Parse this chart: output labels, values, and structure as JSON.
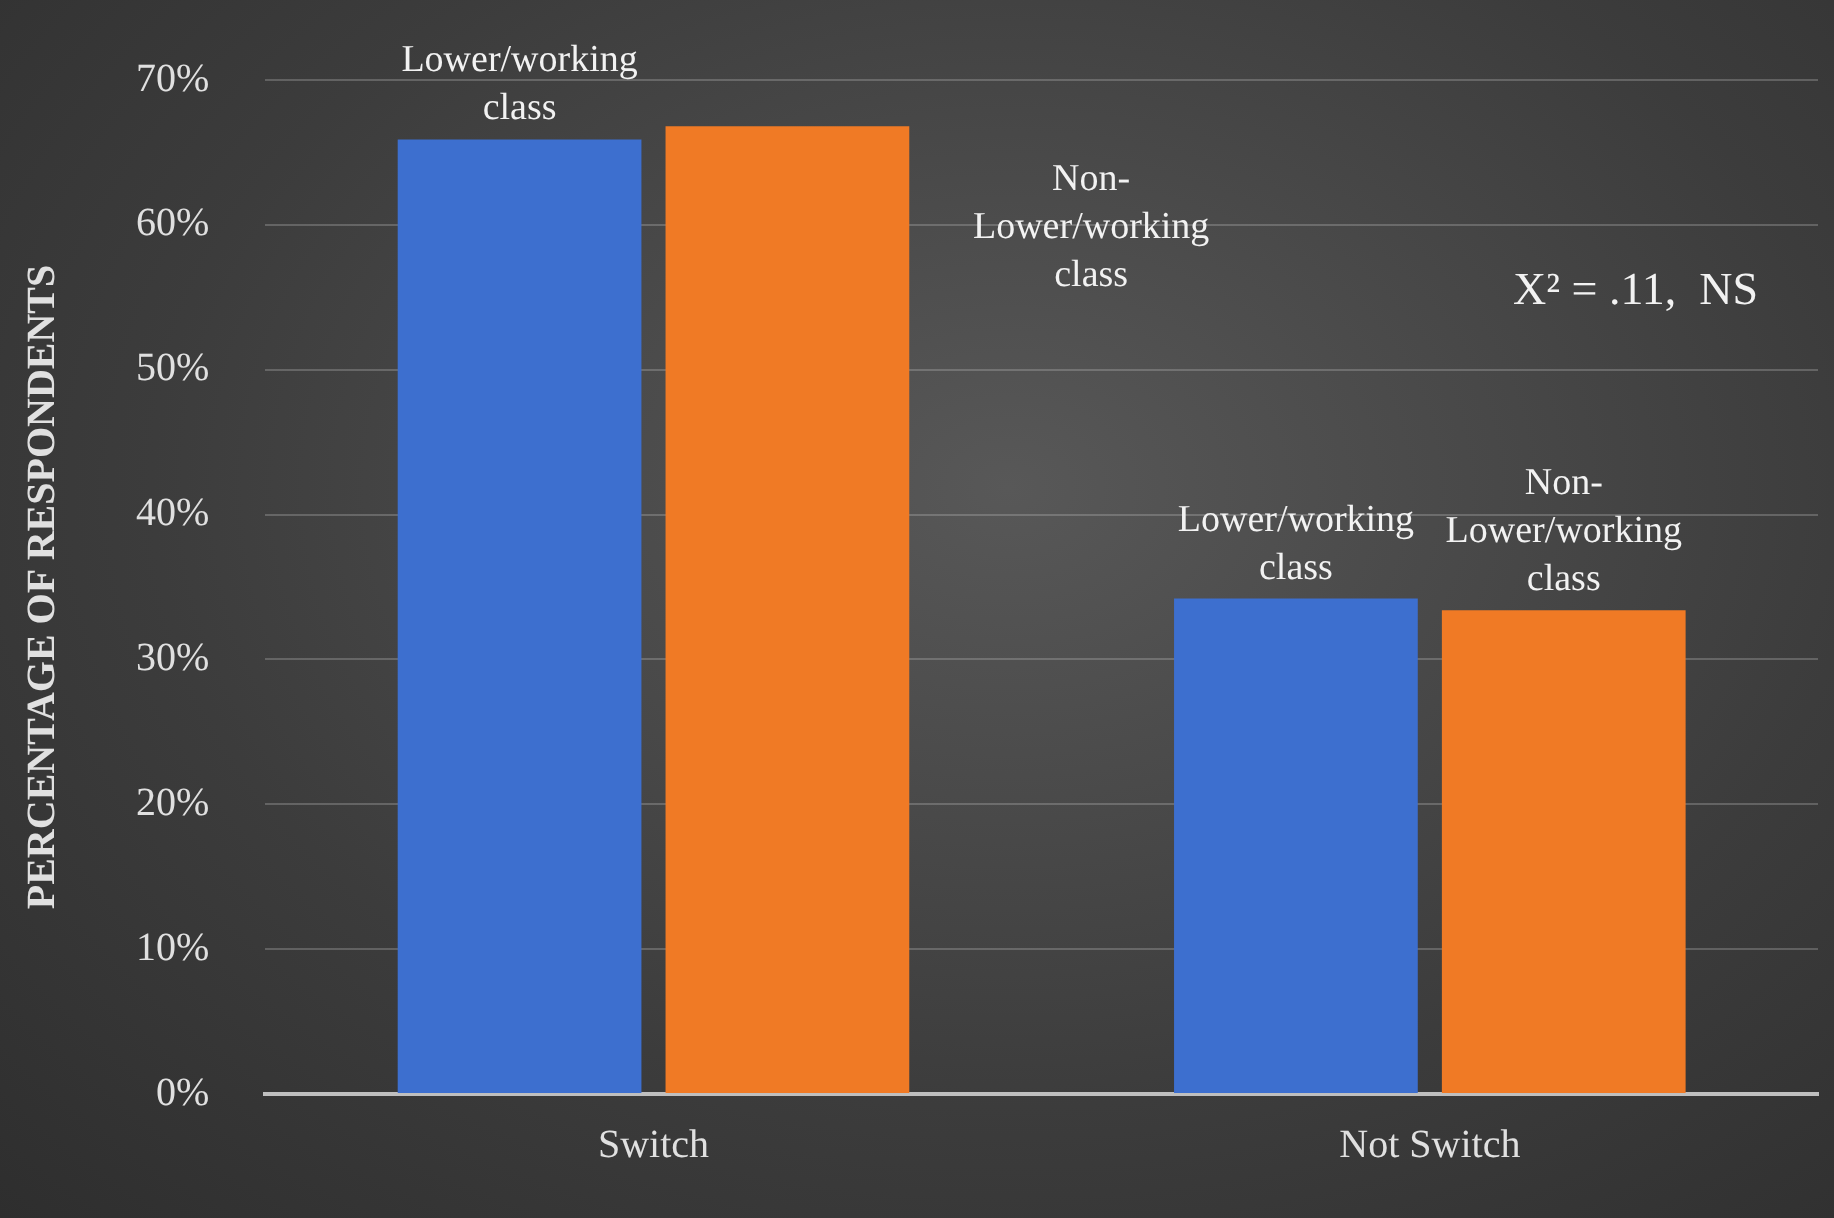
{
  "chart_data": {
    "type": "bar",
    "ylabel": "PERCENTAGE OF RESPONDENTS",
    "categories": [
      "Switch",
      "Not Switch"
    ],
    "series": [
      {
        "name": "Lower/working class",
        "color": "#3d6fcf",
        "values": [
          65.9,
          34.2
        ]
      },
      {
        "name": "Non-Lower/working class",
        "color": "#f07a25",
        "values": [
          66.8,
          33.4
        ]
      }
    ],
    "ylim": [
      0,
      70
    ],
    "yticks": [
      {
        "value": 0,
        "label": "0%"
      },
      {
        "value": 10,
        "label": "10%"
      },
      {
        "value": 20,
        "label": "20%"
      },
      {
        "value": 30,
        "label": "30%"
      },
      {
        "value": 40,
        "label": "40%"
      },
      {
        "value": 50,
        "label": "50%"
      },
      {
        "value": 60,
        "label": "60%"
      },
      {
        "value": 70,
        "label": "70%"
      }
    ],
    "grid": "y",
    "legend": false,
    "annotations": [
      "X² = .11,  NS"
    ]
  }
}
